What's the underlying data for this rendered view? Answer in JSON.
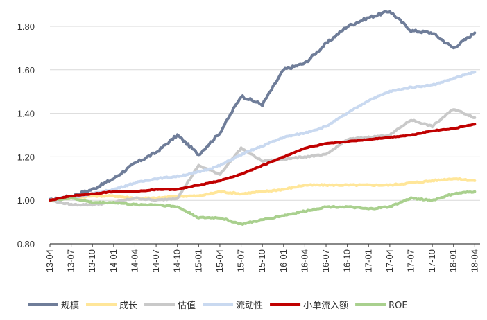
{
  "chart_data": {
    "type": "line",
    "title": "",
    "xlabel": "",
    "ylabel": "",
    "ylim": [
      0.8,
      1.8
    ],
    "y_ticks": [
      "0.80",
      "1.00",
      "1.20",
      "1.40",
      "1.60",
      "1.80"
    ],
    "categories": [
      "13-04",
      "13-07",
      "13-10",
      "14-01",
      "14-04",
      "14-07",
      "14-10",
      "15-01",
      "15-04",
      "15-07",
      "15-10",
      "16-01",
      "16-04",
      "16-07",
      "16-10",
      "17-01",
      "17-04",
      "17-07",
      "17-10",
      "18-01",
      "18-04"
    ],
    "grid": "horizontal",
    "legend_position": "bottom",
    "series": [
      {
        "name": "规模",
        "color": "#6F7D99",
        "values": [
          1.0,
          1.02,
          1.05,
          1.1,
          1.17,
          1.22,
          1.3,
          1.21,
          1.31,
          1.48,
          1.44,
          1.6,
          1.63,
          1.72,
          1.8,
          1.84,
          1.87,
          1.78,
          1.77,
          1.7,
          1.77
        ]
      },
      {
        "name": "成长",
        "color": "#FFE699",
        "values": [
          1.0,
          1.01,
          1.02,
          1.02,
          1.01,
          1.01,
          1.02,
          1.02,
          1.04,
          1.03,
          1.04,
          1.05,
          1.07,
          1.07,
          1.07,
          1.07,
          1.07,
          1.08,
          1.09,
          1.1,
          1.09
        ]
      },
      {
        "name": "估值",
        "color": "#C9C9C9",
        "values": [
          1.0,
          0.98,
          0.98,
          0.99,
          1.01,
          1.0,
          1.01,
          1.16,
          1.12,
          1.24,
          1.18,
          1.19,
          1.2,
          1.21,
          1.28,
          1.29,
          1.3,
          1.37,
          1.34,
          1.42,
          1.38
        ]
      },
      {
        "name": "流动性",
        "color": "#C9D9F0",
        "values": [
          1.0,
          1.01,
          1.03,
          1.05,
          1.08,
          1.1,
          1.11,
          1.13,
          1.16,
          1.21,
          1.25,
          1.29,
          1.31,
          1.34,
          1.4,
          1.46,
          1.5,
          1.52,
          1.53,
          1.56,
          1.59
        ]
      },
      {
        "name": "小单流入额",
        "color": "#C00000",
        "values": [
          1.0,
          1.02,
          1.03,
          1.04,
          1.04,
          1.05,
          1.05,
          1.07,
          1.09,
          1.12,
          1.16,
          1.2,
          1.24,
          1.26,
          1.27,
          1.28,
          1.29,
          1.3,
          1.32,
          1.33,
          1.35
        ]
      },
      {
        "name": "ROE",
        "color": "#A9D08E",
        "values": [
          1.0,
          1.01,
          0.99,
          0.99,
          0.98,
          0.98,
          0.97,
          0.92,
          0.92,
          0.89,
          0.91,
          0.93,
          0.95,
          0.97,
          0.97,
          0.96,
          0.97,
          1.01,
          1.0,
          1.03,
          1.04
        ]
      }
    ]
  }
}
